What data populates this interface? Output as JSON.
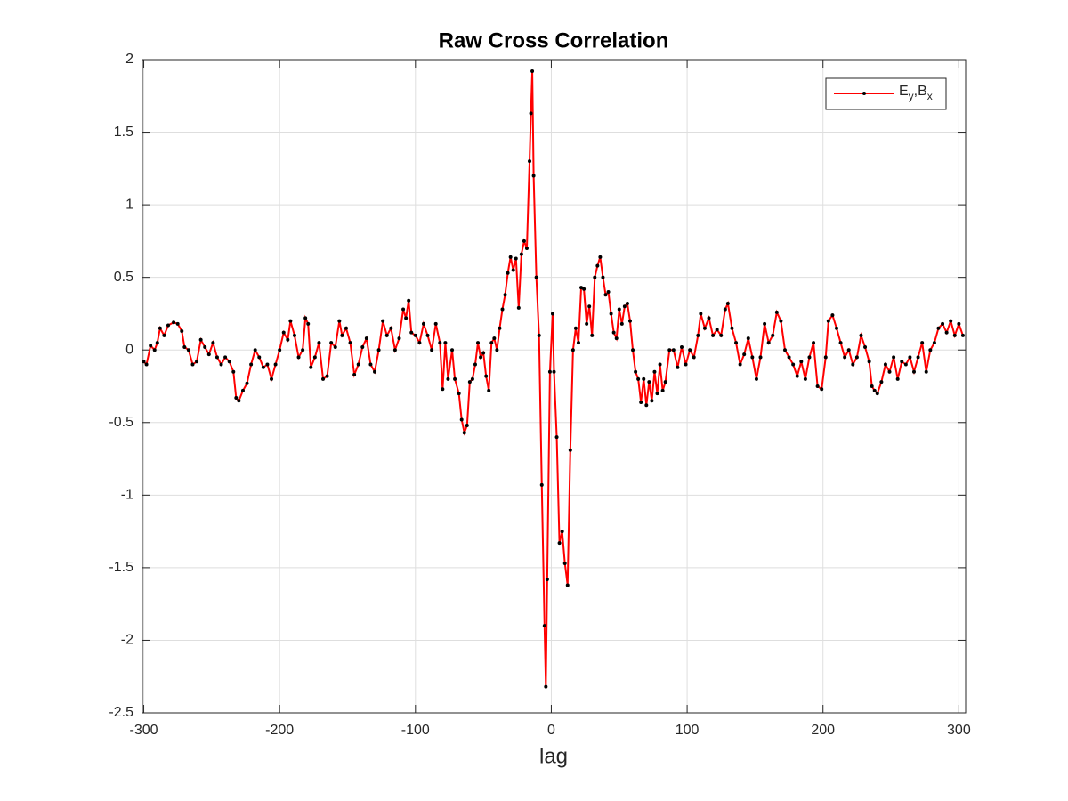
{
  "chart_data": {
    "type": "line",
    "title": "Raw Cross Correlation",
    "x_label": "lag",
    "x": [
      -300,
      -298,
      -295,
      -292,
      -290,
      -288,
      -285,
      -282,
      -278,
      -275,
      -272,
      -270,
      -267,
      -264,
      -261,
      -258,
      -255,
      -252,
      -249,
      -246,
      -243,
      -240,
      -237,
      -234,
      -232,
      -230,
      -227,
      -224,
      -221,
      -218,
      -215,
      -212,
      -209,
      -206,
      -203,
      -200,
      -197,
      -194,
      -192,
      -189,
      -186,
      -183,
      -181,
      -179,
      -177,
      -174,
      -171,
      -168,
      -165,
      -162,
      -159,
      -156,
      -154,
      -151,
      -148,
      -145,
      -142,
      -139,
      -136,
      -133,
      -130,
      -127,
      -124,
      -121,
      -118,
      -115,
      -112,
      -109,
      -107,
      -105,
      -103,
      -100,
      -97,
      -94,
      -91,
      -88,
      -85,
      -82,
      -80,
      -78,
      -76,
      -73,
      -71,
      -68,
      -66,
      -64,
      -62,
      -60,
      -58,
      -56,
      -54,
      -52,
      -50,
      -48,
      -46,
      -44,
      -42,
      -40,
      -38,
      -36,
      -34,
      -32,
      -30,
      -28,
      -26,
      -24,
      -22,
      -20,
      -18,
      -16,
      -15,
      -14,
      -13,
      -11,
      -9,
      -7,
      -5,
      -4,
      -3,
      -1,
      1,
      2,
      4,
      6,
      8,
      10,
      12,
      14,
      16,
      18,
      20,
      22,
      24,
      26,
      28,
      30,
      32,
      34,
      36,
      38,
      40,
      42,
      44,
      46,
      48,
      50,
      52,
      54,
      56,
      58,
      60,
      62,
      64,
      66,
      68,
      70,
      72,
      74,
      76,
      78,
      80,
      82,
      84,
      87,
      90,
      93,
      96,
      99,
      102,
      105,
      108,
      110,
      113,
      116,
      119,
      122,
      125,
      128,
      130,
      133,
      136,
      139,
      142,
      145,
      148,
      151,
      154,
      157,
      160,
      163,
      166,
      169,
      172,
      175,
      178,
      181,
      184,
      187,
      190,
      193,
      196,
      199,
      202,
      204,
      207,
      210,
      213,
      216,
      219,
      222,
      225,
      228,
      231,
      234,
      236,
      238,
      240,
      243,
      246,
      249,
      252,
      255,
      258,
      261,
      264,
      267,
      270,
      273,
      276,
      279,
      282,
      285,
      288,
      291,
      294,
      297,
      300,
      303
    ],
    "series": [
      {
        "name": "E_y,B_x",
        "color": "#ff0000",
        "marker_color": "#000000",
        "values": [
          -0.08,
          -0.1,
          0.03,
          0.0,
          0.05,
          0.15,
          0.1,
          0.17,
          0.19,
          0.18,
          0.13,
          0.02,
          0.0,
          -0.1,
          -0.08,
          0.07,
          0.02,
          -0.03,
          0.05,
          -0.05,
          -0.1,
          -0.05,
          -0.08,
          -0.15,
          -0.33,
          -0.35,
          -0.28,
          -0.23,
          -0.1,
          0.0,
          -0.05,
          -0.12,
          -0.1,
          -0.2,
          -0.1,
          0.0,
          0.12,
          0.07,
          0.2,
          0.1,
          -0.05,
          0.0,
          0.22,
          0.18,
          -0.12,
          -0.05,
          0.05,
          -0.2,
          -0.18,
          0.05,
          0.02,
          0.2,
          0.1,
          0.15,
          0.05,
          -0.17,
          -0.1,
          0.02,
          0.08,
          -0.1,
          -0.15,
          0.0,
          0.2,
          0.1,
          0.15,
          0.0,
          0.08,
          0.28,
          0.22,
          0.34,
          0.12,
          0.1,
          0.05,
          0.18,
          0.1,
          0.0,
          0.18,
          0.05,
          -0.27,
          0.05,
          -0.2,
          0.0,
          -0.2,
          -0.3,
          -0.48,
          -0.57,
          -0.52,
          -0.22,
          -0.2,
          -0.1,
          0.05,
          -0.05,
          -0.02,
          -0.18,
          -0.28,
          0.05,
          0.08,
          0.0,
          0.15,
          0.28,
          0.38,
          0.53,
          0.64,
          0.55,
          0.63,
          0.29,
          0.66,
          0.75,
          0.7,
          1.3,
          1.63,
          1.92,
          1.2,
          0.5,
          0.1,
          -0.93,
          -1.9,
          -2.32,
          -1.58,
          -0.15,
          0.25,
          -0.15,
          -0.6,
          -1.33,
          -1.25,
          -1.47,
          -1.62,
          -0.69,
          0.0,
          0.15,
          0.05,
          0.43,
          0.42,
          0.18,
          0.3,
          0.1,
          0.5,
          0.58,
          0.64,
          0.5,
          0.38,
          0.4,
          0.25,
          0.12,
          0.08,
          0.28,
          0.18,
          0.3,
          0.32,
          0.2,
          0.0,
          -0.15,
          -0.2,
          -0.36,
          -0.2,
          -0.38,
          -0.22,
          -0.35,
          -0.15,
          -0.3,
          -0.1,
          -0.28,
          -0.22,
          0.0,
          0.0,
          -0.12,
          0.02,
          -0.1,
          0.0,
          -0.05,
          0.1,
          0.25,
          0.15,
          0.22,
          0.1,
          0.14,
          0.1,
          0.28,
          0.32,
          0.15,
          0.05,
          -0.1,
          -0.03,
          0.08,
          -0.05,
          -0.2,
          -0.05,
          0.18,
          0.05,
          0.1,
          0.26,
          0.2,
          0.0,
          -0.05,
          -0.1,
          -0.18,
          -0.08,
          -0.2,
          -0.05,
          0.05,
          -0.25,
          -0.27,
          -0.05,
          0.2,
          0.24,
          0.15,
          0.05,
          -0.05,
          0.0,
          -0.1,
          -0.05,
          0.1,
          0.02,
          -0.08,
          -0.25,
          -0.28,
          -0.3,
          -0.22,
          -0.1,
          -0.15,
          -0.05,
          -0.2,
          -0.08,
          -0.1,
          -0.05,
          -0.15,
          -0.05,
          0.05,
          -0.15,
          0.0,
          0.05,
          0.15,
          0.18,
          0.12,
          0.2,
          0.1,
          0.18,
          0.1
        ]
      }
    ],
    "xlim": [
      -301,
      305
    ],
    "ylim": [
      -2.5,
      2
    ],
    "xticks": [
      -300,
      -200,
      -100,
      0,
      100,
      200,
      300
    ],
    "yticks": [
      -2.5,
      -2,
      -1.5,
      -1,
      -0.5,
      0,
      0.5,
      1,
      1.5,
      2
    ],
    "grid": true,
    "legend_position": "northeast"
  }
}
